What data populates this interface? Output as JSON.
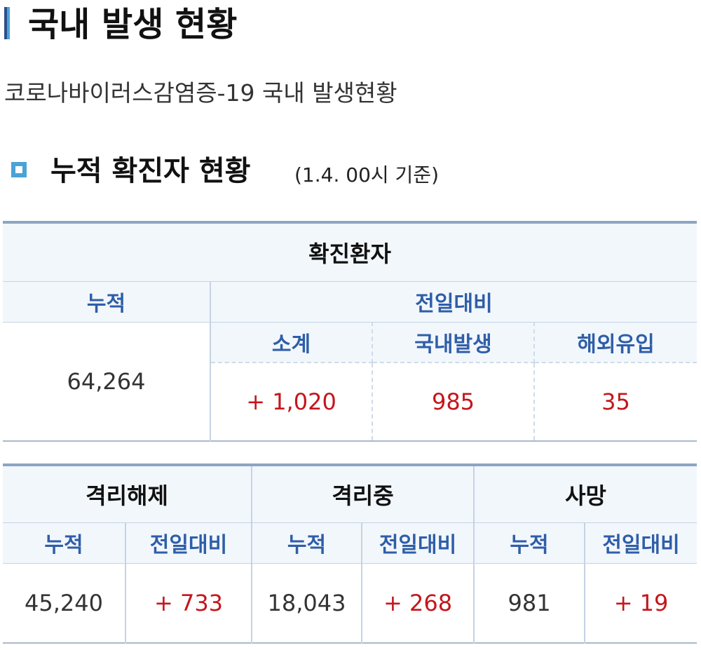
{
  "header": {
    "title": "국내 발생 현황",
    "subtitle": "코로나바이러스감염증-19 국내 발생현황"
  },
  "section": {
    "title": "누적 확진자 현황",
    "note": "(1.4. 00시 기준)"
  },
  "confirmed": {
    "header": "확진환자",
    "cumulative_label": "누적",
    "change_label": "전일대비",
    "subtotal_label": "소계",
    "domestic_label": "국내발생",
    "imported_label": "해외유입",
    "cumulative_value": "64,264",
    "subtotal_value": "+ 1,020",
    "domestic_value": "985",
    "imported_value": "35"
  },
  "status": {
    "released": {
      "header": "격리해제",
      "cumulative_label": "누적",
      "change_label": "전일대비",
      "cumulative_value": "45,240",
      "change_value": "+ 733"
    },
    "isolated": {
      "header": "격리중",
      "cumulative_label": "누적",
      "change_label": "전일대비",
      "cumulative_value": "18,043",
      "change_value": "+ 268"
    },
    "deaths": {
      "header": "사망",
      "cumulative_label": "누적",
      "change_label": "전일대비",
      "cumulative_value": "981",
      "change_value": "+ 19"
    }
  },
  "colors": {
    "accent_dark": "#2c4f8a",
    "accent_light": "#4aa3d6",
    "label_blue": "#2f5ea8",
    "increase_red": "#c4161c"
  }
}
